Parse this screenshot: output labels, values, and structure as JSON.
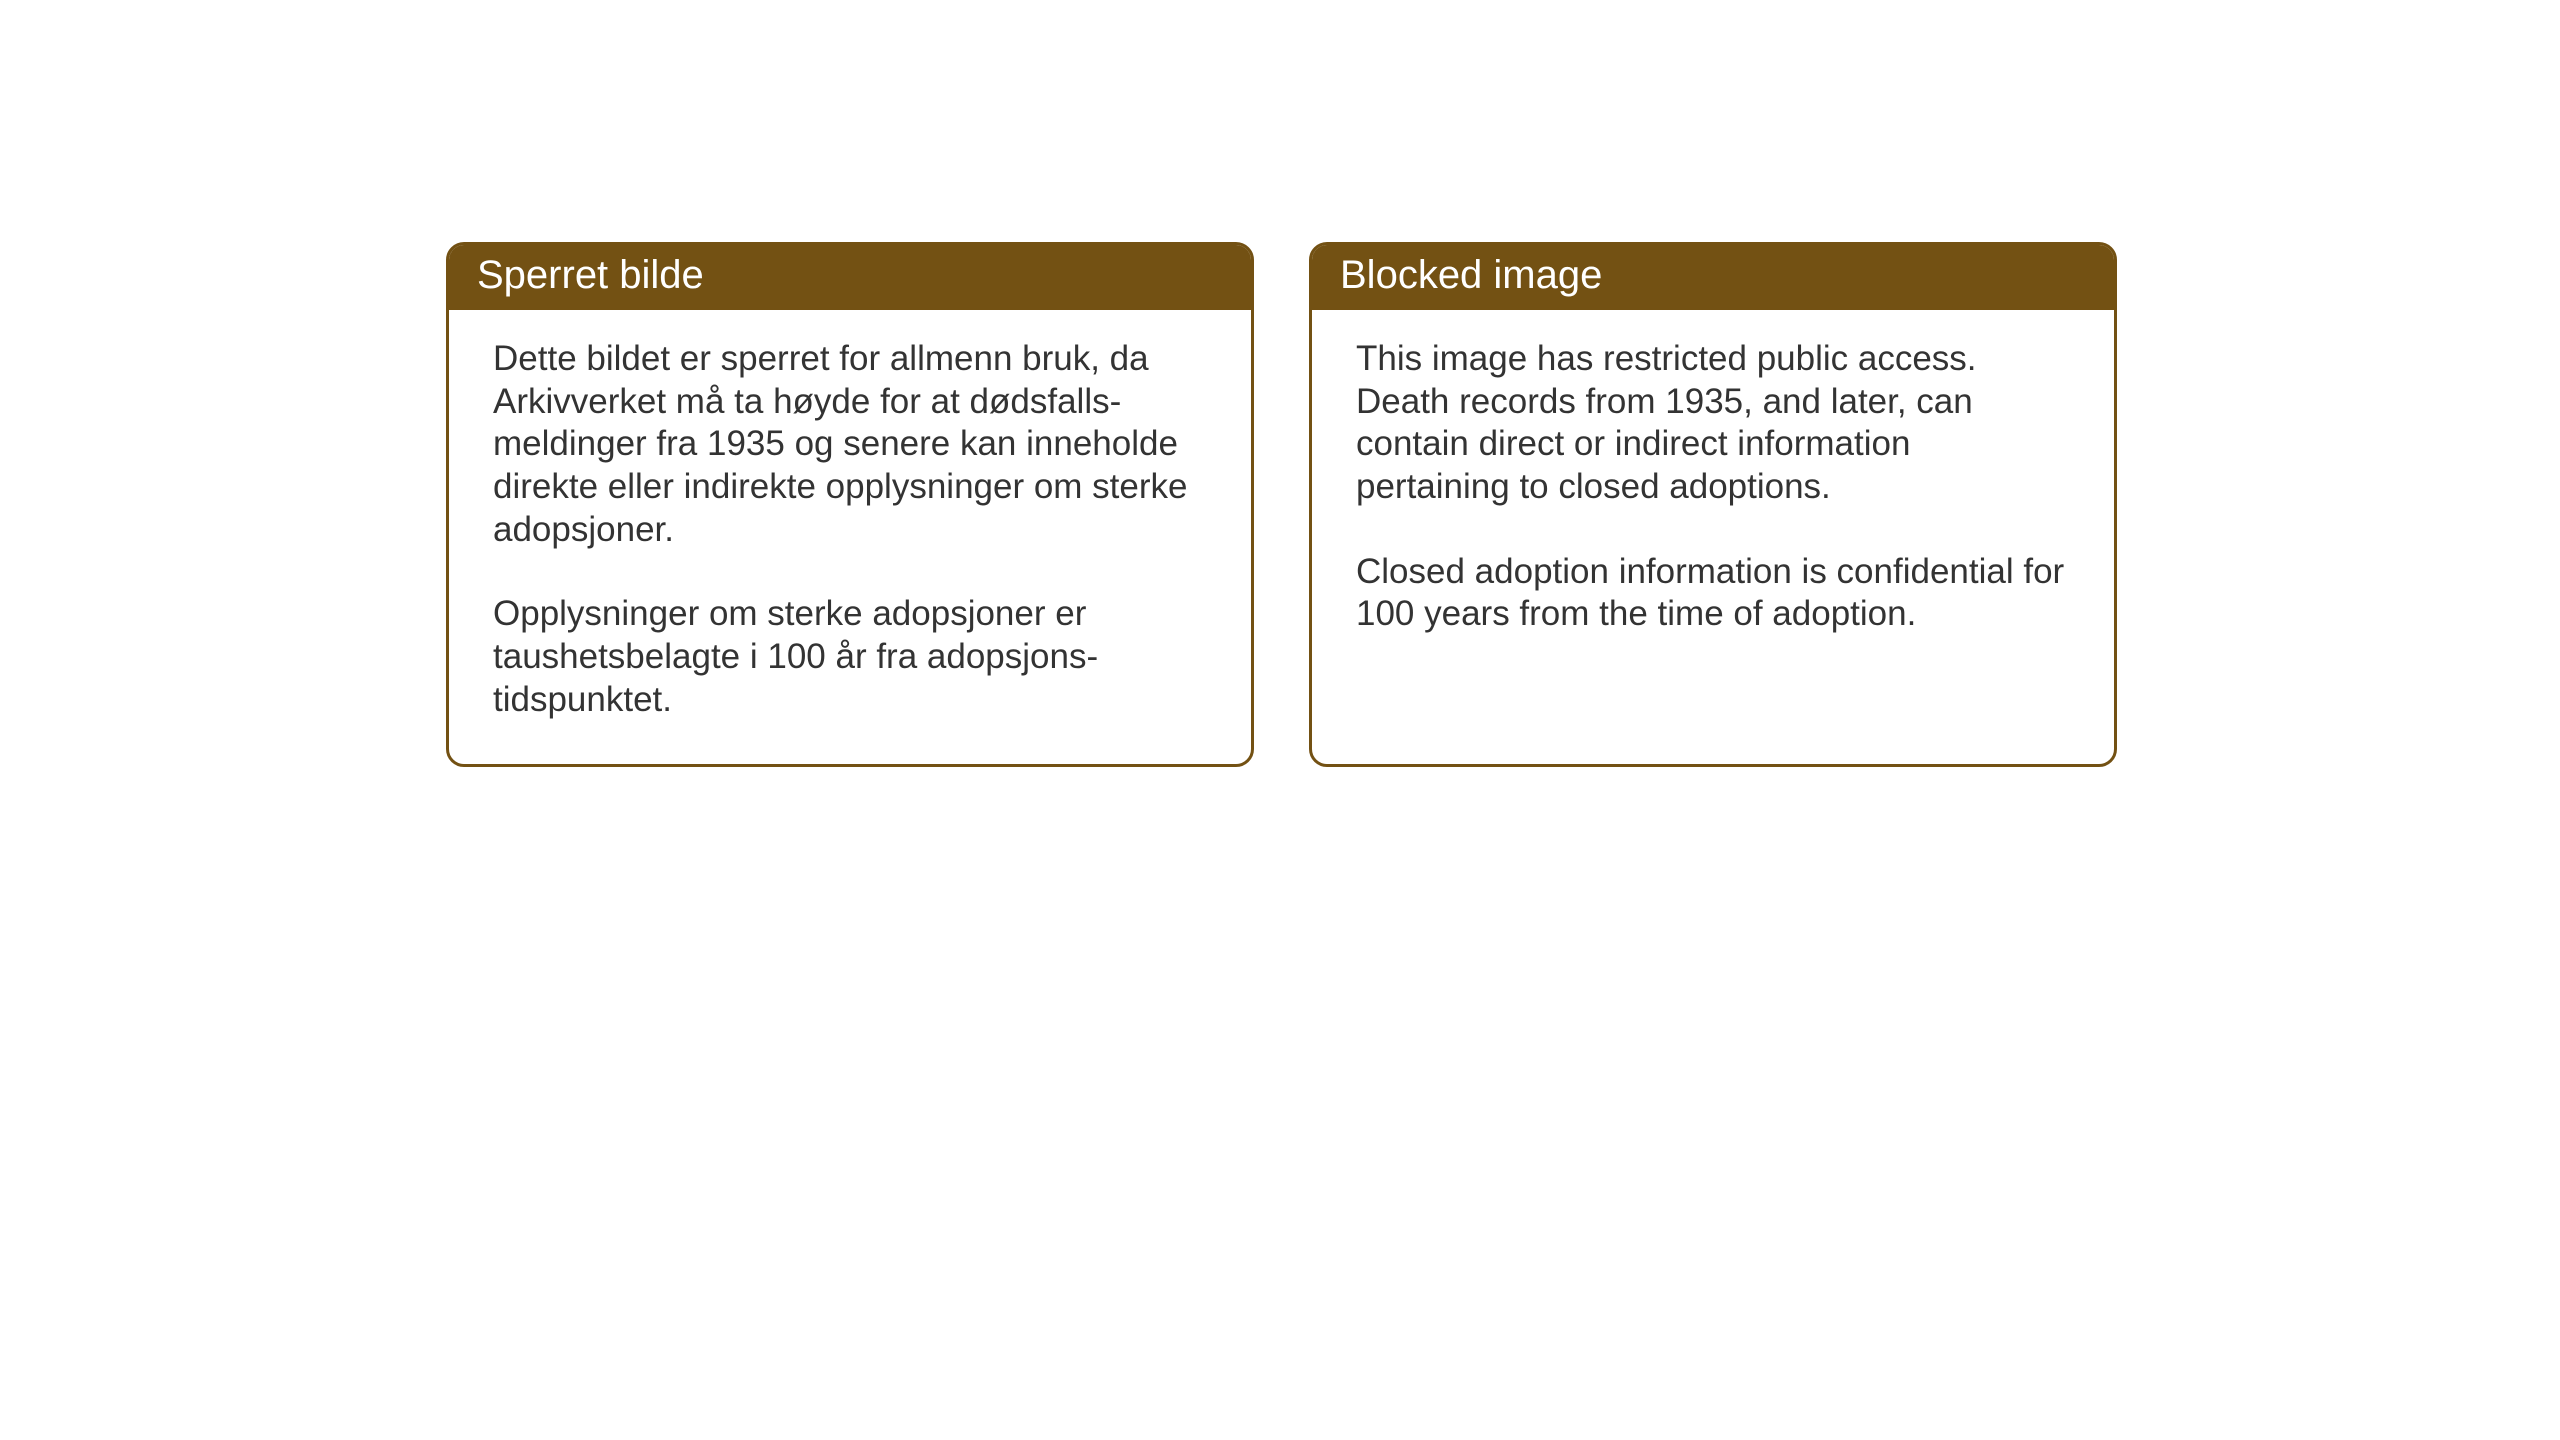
{
  "boxes": [
    {
      "header": "Sperret bilde",
      "paragraph1": "Dette bildet er sperret for allmenn bruk, da Arkivverket må ta høyde for at dødsfalls-meldinger fra 1935 og senere kan inneholde direkte eller indirekte opplysninger om sterke adopsjoner.",
      "paragraph2": "Opplysninger om sterke adopsjoner er taushetsbelagte i 100 år fra adopsjons-tidspunktet."
    },
    {
      "header": "Blocked image",
      "paragraph1": "This image has restricted public access. Death records from 1935, and later, can contain direct or indirect information pertaining to closed adoptions.",
      "paragraph2": "Closed adoption information is confidential for 100 years from the time of adoption."
    }
  ],
  "styling": {
    "header_bg_color": "#735113",
    "header_text_color": "#ffffff",
    "border_color": "#735113",
    "body_text_color": "#333333",
    "page_bg_color": "#ffffff",
    "header_fontsize": 40,
    "body_fontsize": 35,
    "border_radius": 18,
    "border_width": 3
  }
}
